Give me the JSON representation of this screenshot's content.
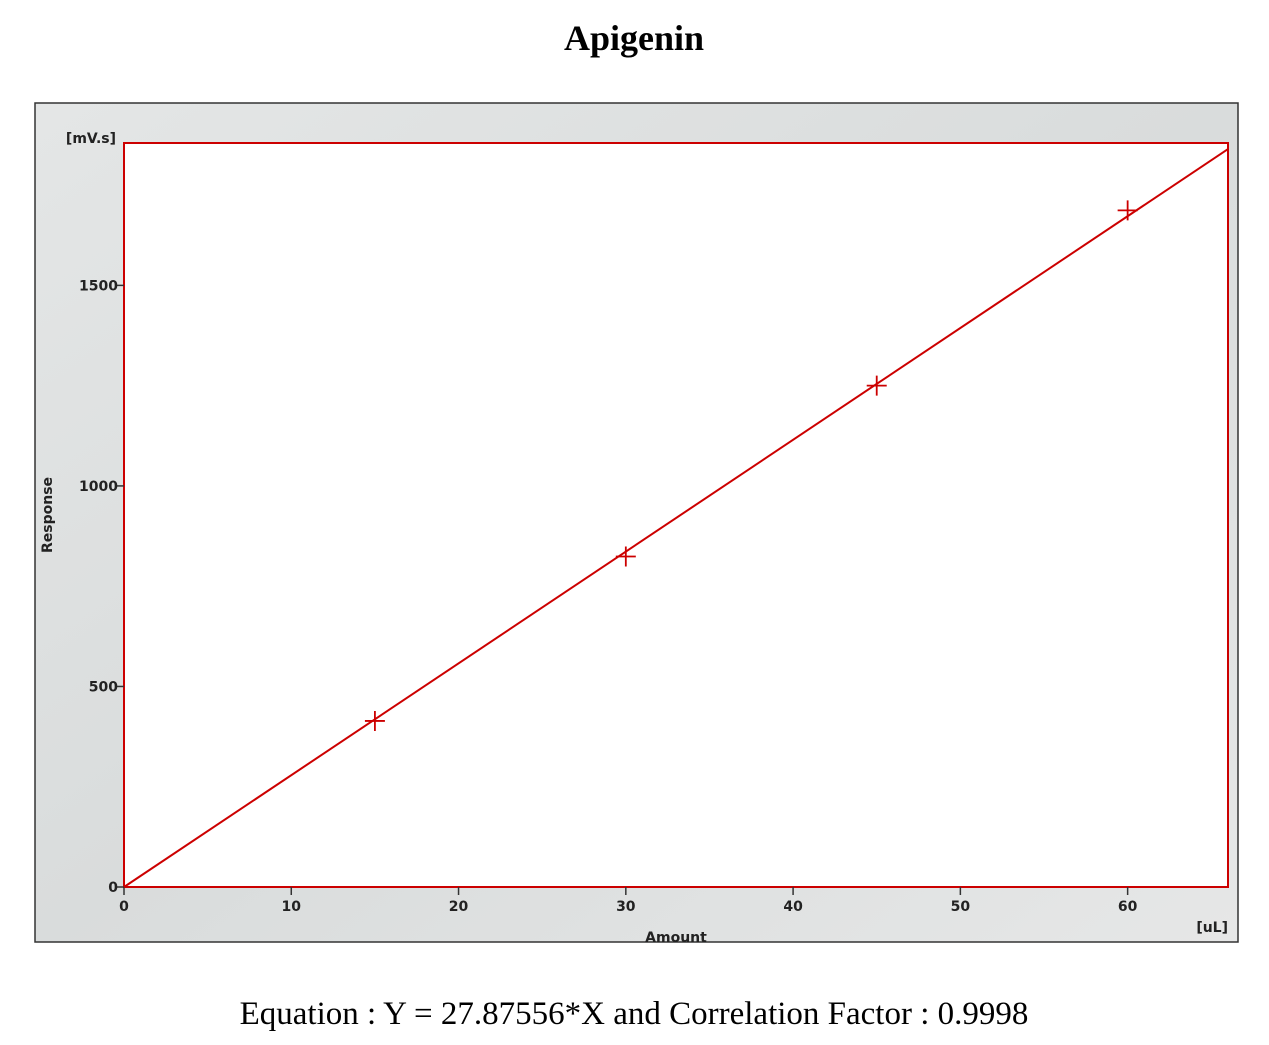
{
  "chart_data": {
    "type": "scatter",
    "title": "Apigenin",
    "x_label": "Amount",
    "y_label": "Response",
    "x_unit": "[uL]",
    "y_unit": "[mV.s]",
    "x": [
      15,
      30,
      45,
      60
    ],
    "values": [
      414,
      824,
      1250,
      1687
    ],
    "color": "#cc0000",
    "trendline": {
      "slope": 27.87556
    },
    "xlim": [
      0,
      66
    ],
    "ylim": [
      0,
      1855
    ],
    "xticks": [
      0,
      10,
      20,
      30,
      40,
      50,
      60
    ],
    "yticks": [
      0,
      500,
      1000,
      1500
    ],
    "caption": "Equation : Y = 27.87556*X and Correlation Factor : 0.9998"
  }
}
